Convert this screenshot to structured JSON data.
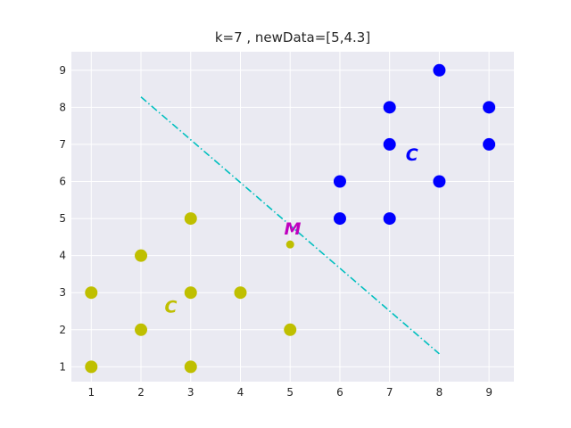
{
  "chart_data": {
    "type": "scatter",
    "title": "k=7 , newData=[5,4.3]",
    "xlabel": "",
    "ylabel": "",
    "xlim": [
      0.6,
      9.5
    ],
    "ylim": [
      0.6,
      9.5
    ],
    "x_ticks": [
      1,
      2,
      3,
      4,
      5,
      6,
      7,
      8,
      9
    ],
    "y_ticks": [
      1,
      2,
      3,
      4,
      5,
      6,
      7,
      8,
      9
    ],
    "grid": true,
    "series": [
      {
        "color": "#bfbf00",
        "points": [
          [
            1,
            1
          ],
          [
            1,
            3
          ],
          [
            2,
            2
          ],
          [
            2,
            4
          ],
          [
            3,
            1
          ],
          [
            3,
            3
          ],
          [
            3,
            5
          ],
          [
            4,
            3
          ],
          [
            5,
            2
          ]
        ]
      },
      {
        "color": "#0000ff",
        "points": [
          [
            6,
            5
          ],
          [
            6,
            6
          ],
          [
            7,
            5
          ],
          [
            7,
            7
          ],
          [
            7,
            8
          ],
          [
            8,
            6
          ],
          [
            8,
            9
          ],
          [
            9,
            7
          ],
          [
            9,
            8
          ]
        ]
      }
    ],
    "new_point": {
      "x": 5,
      "y": 4.3,
      "color": "#bfbf00"
    },
    "boundary_line": {
      "color": "#00bfbf",
      "style": "dashdot",
      "from": [
        2,
        8.28
      ],
      "to": [
        8,
        1.35
      ]
    },
    "annotations": [
      {
        "text": "C",
        "x": 2.6,
        "y": 2.6,
        "color": "#bfbf00"
      },
      {
        "text": "C",
        "x": 7.45,
        "y": 6.7,
        "color": "#0000ff"
      },
      {
        "text": "M",
        "x": 5.05,
        "y": 4.7,
        "color": "#bf00bf"
      }
    ]
  }
}
